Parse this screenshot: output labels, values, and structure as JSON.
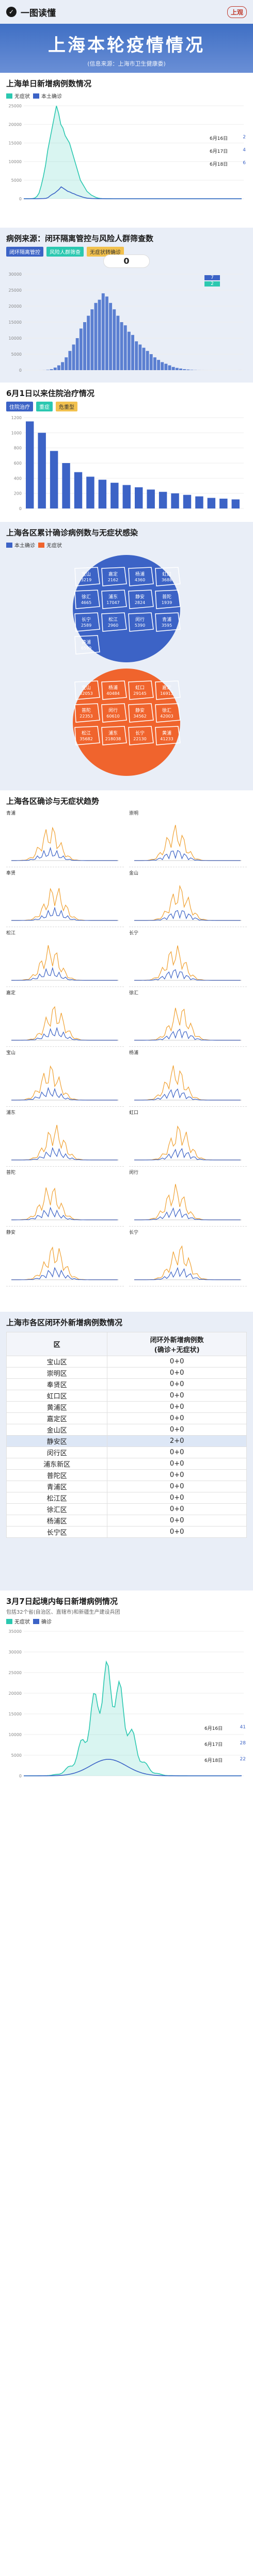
{
  "header": {
    "brand_text": "一图读懂",
    "logo_text": "上观",
    "title": "上海本轮疫情情况",
    "source": "(信息来源：上海市卫生健康委)"
  },
  "section1": {
    "title": "上海单日新增病例数情况",
    "legend": [
      "无症状",
      "本土确诊"
    ],
    "date_tags": [
      "6月16日",
      "6月17日",
      "6月18日"
    ],
    "date_vals_a": [
      "2",
      "4",
      "6"
    ],
    "date_vals_b": [
      "6",
      "1",
      "0"
    ],
    "y_ticks": [
      "25000",
      "20000",
      "15000",
      "10000",
      "5000",
      "0"
    ]
  },
  "section2": {
    "title": "病例来源：闭环隔离管控与风险人群筛查数",
    "legend": [
      "闭环隔离管控",
      "风险人群筛查",
      "无症状转确诊"
    ],
    "bignum": "0",
    "side_vals": [
      "7",
      "2"
    ],
    "y_ticks": [
      "30000",
      "25000",
      "20000",
      "15000",
      "10000",
      "5000",
      "0"
    ]
  },
  "section3": {
    "title": "6月1日以来住院治疗情况",
    "legend": [
      "住院治疗",
      "重症",
      "危重型"
    ],
    "y_ticks": [
      "1200",
      "1000",
      "800",
      "600",
      "400",
      "200",
      "0"
    ]
  },
  "section4": {
    "title": "上海各区累计确诊病例数与无症状感染",
    "legend": [
      "本土确诊",
      "无症状"
    ],
    "blue_cells": [
      {
        "name": "宝山",
        "val": "3219"
      },
      {
        "name": "嘉定",
        "val": "2162"
      },
      {
        "name": "杨浦",
        "val": "4360"
      },
      {
        "name": "虹口",
        "val": "3688"
      },
      {
        "name": "徐汇",
        "val": "4665"
      },
      {
        "name": "浦东",
        "val": "17047"
      },
      {
        "name": "静安",
        "val": "2824"
      },
      {
        "name": "普陀",
        "val": "1939"
      },
      {
        "name": "长宁",
        "val": "2589"
      },
      {
        "name": "松江",
        "val": "2960"
      },
      {
        "name": "闵行",
        "val": "5390"
      },
      {
        "name": "青浦",
        "val": "3595"
      },
      {
        "name": "黄浦",
        "val": "6599"
      }
    ],
    "red_cells": [
      {
        "name": "宝山",
        "val": "32053"
      },
      {
        "name": "杨浦",
        "val": "40484"
      },
      {
        "name": "虹口",
        "val": "29145"
      },
      {
        "name": "嘉定",
        "val": "16913"
      },
      {
        "name": "普陀",
        "val": "22353"
      },
      {
        "name": "闵行",
        "val": "60610"
      },
      {
        "name": "静安",
        "val": "34562"
      },
      {
        "name": "徐汇",
        "val": "42003"
      },
      {
        "name": "松江",
        "val": "35682"
      },
      {
        "name": "浦东",
        "val": "218038"
      },
      {
        "name": "长宁",
        "val": "22130"
      },
      {
        "name": "黄浦",
        "val": "41233"
      }
    ]
  },
  "section5": {
    "title": "上海各区确诊与无症状趋势",
    "districts": [
      "青浦",
      "崇明",
      "奉贤",
      "金山",
      "松江",
      "长宁",
      "嘉定",
      "徐汇",
      "宝山",
      "杨浦",
      "浦东",
      "虹口",
      "普陀",
      "闵行",
      "静安",
      "长宁"
    ]
  },
  "section6": {
    "title": "上海市各区闭环外新增病例数情况",
    "col_district": "区",
    "col_value": "闭环外新增病例数\n(确诊+无症状)",
    "rows": [
      {
        "d": "宝山区",
        "v": "0+0"
      },
      {
        "d": "崇明区",
        "v": "0+0"
      },
      {
        "d": "奉贤区",
        "v": "0+0"
      },
      {
        "d": "虹口区",
        "v": "0+0"
      },
      {
        "d": "黄浦区",
        "v": "0+0"
      },
      {
        "d": "嘉定区",
        "v": "0+0"
      },
      {
        "d": "金山区",
        "v": "0+0"
      },
      {
        "d": "静安区",
        "v": "2+0"
      },
      {
        "d": "闵行区",
        "v": "0+0"
      },
      {
        "d": "浦东新区",
        "v": "0+0"
      },
      {
        "d": "普陀区",
        "v": "0+0"
      },
      {
        "d": "青浦区",
        "v": "0+0"
      },
      {
        "d": "松江区",
        "v": "0+0"
      },
      {
        "d": "徐汇区",
        "v": "0+0"
      },
      {
        "d": "杨浦区",
        "v": "0+0"
      },
      {
        "d": "长宁区",
        "v": "0+0"
      }
    ],
    "highlight_row": 7
  },
  "section7": {
    "title": "3月7日起境内每日新增病例情况",
    "sub": "包括32个省(自治区、直辖市)和新疆生产建设兵团",
    "legend": [
      "无症状",
      "确诊"
    ],
    "date_tags": [
      "6月16日",
      "6月17日",
      "6月18日"
    ],
    "date_vals_a": [
      "41",
      "28",
      "22"
    ],
    "date_vals_b": [
      "23",
      "11",
      "6"
    ],
    "y_ticks": [
      "35000",
      "30000",
      "25000",
      "20000",
      "15000",
      "10000",
      "5000",
      "0"
    ]
  },
  "colors": {
    "blue": "#3c63c6",
    "teal": "#2bc8b0",
    "orange": "#f0642d",
    "navy": "#2a3b8f"
  },
  "chart_data": [
    {
      "type": "line",
      "series": [
        {
          "name": "无症状",
          "values": [
            0,
            2,
            5,
            20,
            60,
            180,
            600,
            1500,
            3500,
            6000,
            9000,
            13000,
            16000,
            19000,
            22000,
            25000,
            23000,
            20000,
            19000,
            17000,
            16000,
            15000,
            13000,
            11000,
            9000,
            7000,
            5000,
            4000,
            3000,
            2000,
            1500,
            1000,
            700,
            400,
            200,
            100,
            50,
            20,
            10,
            5,
            2,
            1,
            0,
            0,
            0,
            0,
            0,
            0,
            0,
            0,
            0,
            0,
            0,
            0,
            0,
            0,
            0,
            0,
            0,
            0,
            0,
            0,
            0,
            0,
            0,
            0,
            0,
            0,
            0,
            0,
            0,
            0,
            0,
            0,
            0,
            0,
            0,
            0,
            0,
            0,
            0,
            0,
            0,
            0,
            0,
            0,
            0,
            0,
            0,
            0,
            0,
            0,
            0,
            0,
            0,
            0,
            0,
            0,
            0,
            0,
            2
          ]
        },
        {
          "name": "本土确诊",
          "values": [
            0,
            0,
            0,
            1,
            2,
            5,
            10,
            20,
            40,
            60,
            100,
            300,
            800,
            1200,
            1500,
            2000,
            2500,
            3200,
            2800,
            2400,
            2000,
            1800,
            1500,
            1300,
            1000,
            800,
            600,
            400,
            250,
            150,
            100,
            60,
            40,
            20,
            10,
            5,
            3,
            2,
            1,
            0,
            0,
            0,
            0,
            0,
            0,
            0,
            0,
            0,
            0,
            0,
            0,
            0,
            0,
            0,
            0,
            0,
            0,
            0,
            0,
            0,
            0,
            0,
            0,
            0,
            0,
            0,
            0,
            0,
            0,
            0,
            0,
            0,
            0,
            0,
            0,
            0,
            0,
            0,
            0,
            0,
            0,
            0,
            0,
            0,
            0,
            0,
            0,
            0,
            0,
            0,
            0,
            0,
            0,
            0,
            0,
            0,
            0,
            0,
            0,
            6
          ]
        }
      ],
      "ylim": [
        0,
        25000
      ]
    },
    {
      "type": "bar",
      "series": [
        {
          "name": "闭环隔离管控",
          "values": [
            0,
            0,
            0,
            1,
            5,
            20,
            100,
            300,
            800,
            1500,
            2500,
            4000,
            6000,
            8000,
            10000,
            13000,
            15000,
            17000,
            19000,
            21000,
            22000,
            24000,
            23000,
            21000,
            19000,
            17000,
            15000,
            14000,
            12000,
            11000,
            9000,
            8000,
            7000,
            6000,
            5000,
            4000,
            3200,
            2500,
            2000,
            1500,
            1000,
            700,
            500,
            300,
            200,
            100,
            50,
            20,
            10,
            5,
            2,
            1,
            0,
            0,
            0,
            0,
            0,
            0,
            7
          ]
        }
      ],
      "ylim": [
        0,
        30000
      ]
    },
    {
      "type": "bar",
      "values": [
        1150,
        1000,
        760,
        600,
        480,
        420,
        380,
        340,
        310,
        280,
        250,
        220,
        200,
        180,
        160,
        140,
        130,
        120
      ],
      "ylim": [
        0,
        1200
      ]
    }
  ]
}
